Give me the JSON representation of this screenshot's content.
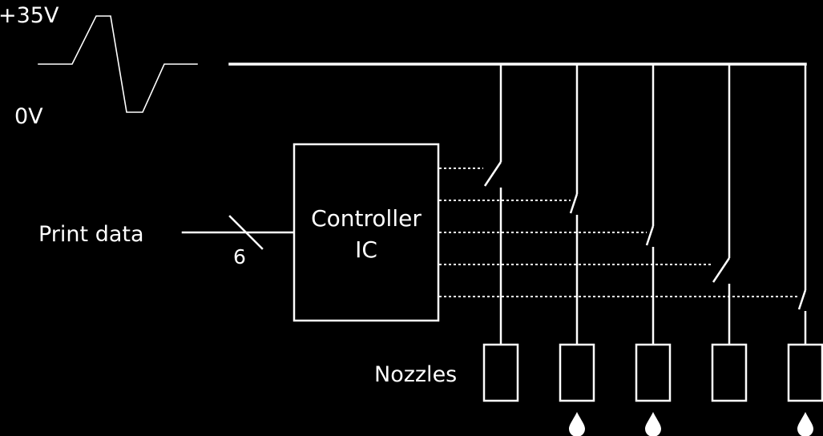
{
  "labels": {
    "voltage_high": "+35V",
    "voltage_low": "0V",
    "print_data": "Print data",
    "bus_width": "6",
    "controller_line1": "Controller",
    "controller_line2": "IC",
    "nozzles": "Nozzles"
  },
  "colors": {
    "background": "#000000",
    "stroke": "#ffffff"
  },
  "switches": [
    {
      "name": "switch-1",
      "state": "open",
      "droplet": false
    },
    {
      "name": "switch-2",
      "state": "closed",
      "droplet": true
    },
    {
      "name": "switch-3",
      "state": "closed",
      "droplet": true
    },
    {
      "name": "switch-4",
      "state": "open",
      "droplet": false
    },
    {
      "name": "switch-5",
      "state": "closed",
      "droplet": true
    }
  ]
}
